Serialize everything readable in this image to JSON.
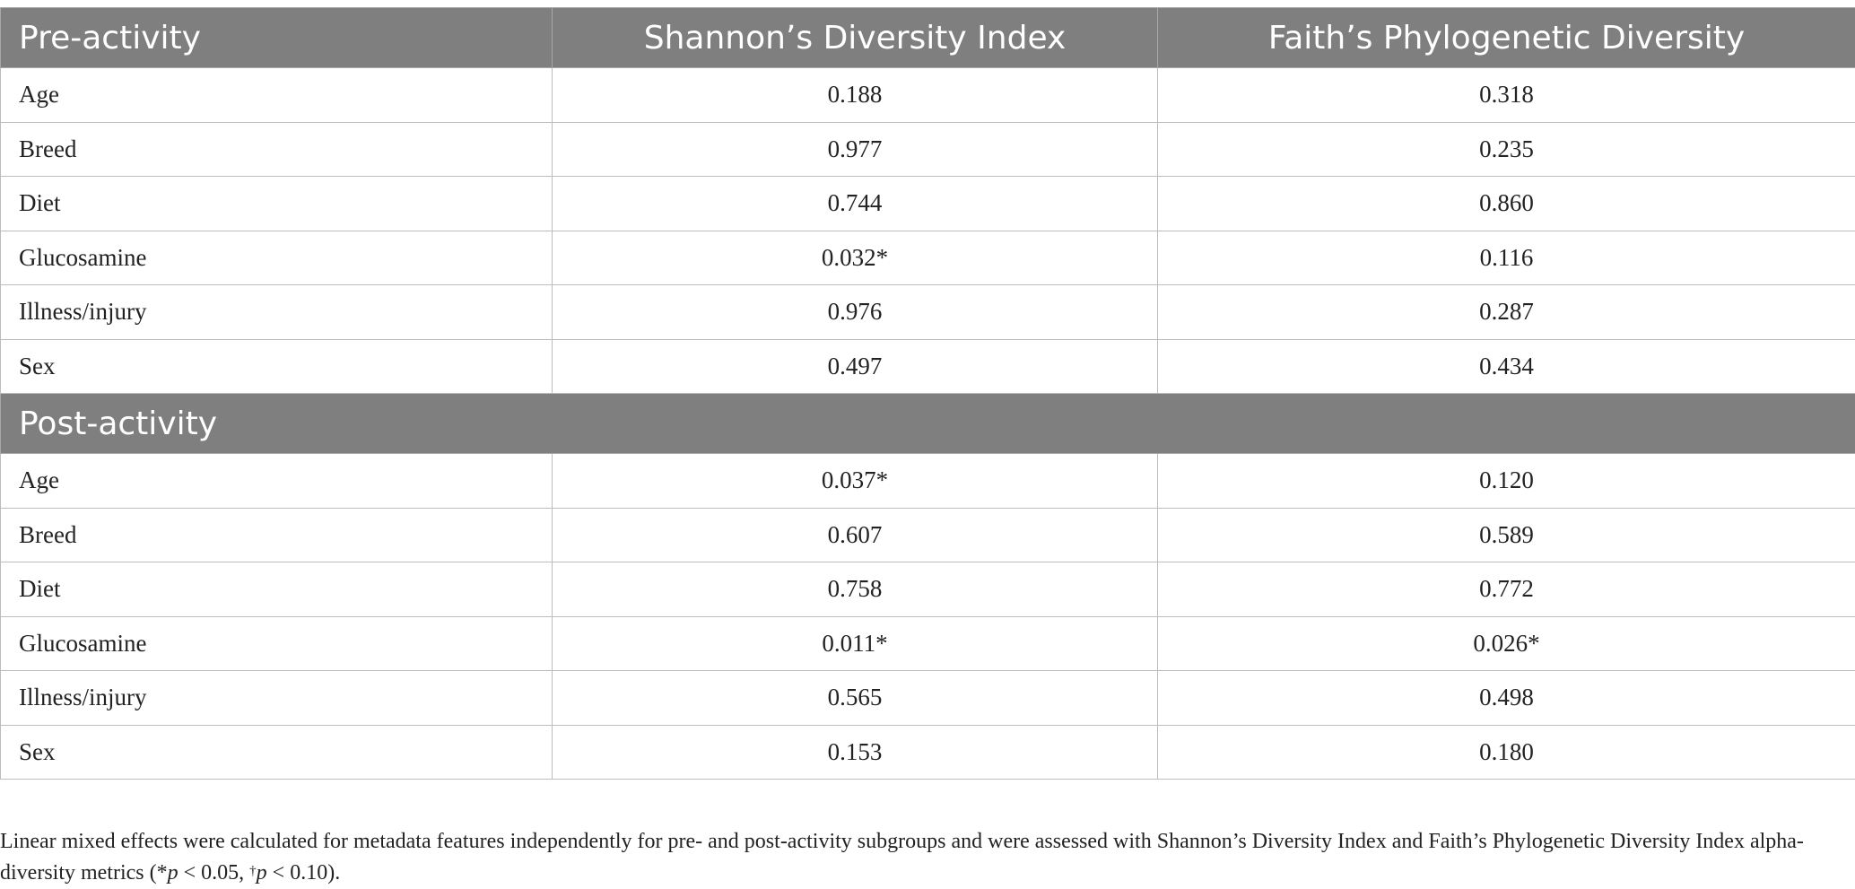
{
  "table": {
    "headers": [
      "Pre-activity",
      "Shannon’s Diversity Index",
      "Faith’s Phylogenetic Diversity"
    ],
    "pre_rows": [
      {
        "label": "Age",
        "shannon": "0.188",
        "faith": "0.318"
      },
      {
        "label": "Breed",
        "shannon": "0.977",
        "faith": "0.235"
      },
      {
        "label": "Diet",
        "shannon": "0.744",
        "faith": "0.860"
      },
      {
        "label": "Glucosamine",
        "shannon": "0.032*",
        "faith": "0.116"
      },
      {
        "label": "Illness/injury",
        "shannon": "0.976",
        "faith": "0.287"
      },
      {
        "label": "Sex",
        "shannon": "0.497",
        "faith": "0.434"
      }
    ],
    "post_section_label": "Post-activity",
    "post_rows": [
      {
        "label": "Age",
        "shannon": "0.037*",
        "faith": "0.120"
      },
      {
        "label": "Breed",
        "shannon": "0.607",
        "faith": "0.589"
      },
      {
        "label": "Diet",
        "shannon": "0.758",
        "faith": "0.772"
      },
      {
        "label": "Glucosamine",
        "shannon": "0.011*",
        "faith": "0.026*"
      },
      {
        "label": "Illness/injury",
        "shannon": "0.565",
        "faith": "0.498"
      },
      {
        "label": "Sex",
        "shannon": "0.153",
        "faith": "0.180"
      }
    ]
  },
  "footnote": {
    "text": "Linear mixed effects were calculated for metadata features independently for pre- and post-activity subgroups and were assessed with Shannon’s Diversity Index and Faith’s Phylogenetic Diversity Index alpha-diversity metrics (",
    "sym1": "*",
    "p1": "p",
    "cond1": " < 0.05, ",
    "sym2": "†",
    "p2": "p",
    "cond2": " < 0.10)."
  }
}
